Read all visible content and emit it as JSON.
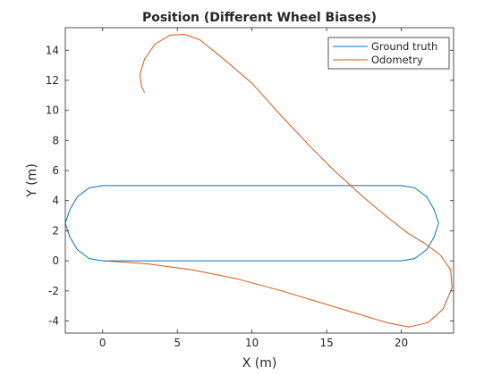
{
  "chart_data": {
    "type": "line",
    "title": "Position (Different Wheel Biases)",
    "xlabel": "X (m)",
    "ylabel": "Y (m)",
    "xlim": [
      -2.5,
      23.5
    ],
    "ylim": [
      -4.8,
      15.5
    ],
    "xticks": [
      0,
      5,
      10,
      15,
      20
    ],
    "xtick_labels": [
      "0",
      "5",
      "10",
      "15",
      "20"
    ],
    "yticks": [
      -4,
      -2,
      0,
      2,
      4,
      6,
      8,
      10,
      12,
      14
    ],
    "ytick_labels": [
      "-4",
      "-2",
      "0",
      "2",
      "4",
      "6",
      "8",
      "10",
      "12",
      "14"
    ],
    "grid": false,
    "legend_position": "top-right",
    "series": [
      {
        "name": "Ground truth",
        "color": "#0072bd",
        "x": [
          0,
          5,
          10,
          15,
          20,
          20.9,
          21.7,
          22.2,
          22.5,
          22.2,
          21.7,
          20.9,
          20,
          15,
          10,
          5,
          0,
          -0.9,
          -1.7,
          -2.2,
          -2.5,
          -2.2,
          -1.7,
          -0.9,
          0
        ],
        "y": [
          0,
          0,
          0,
          0,
          0,
          0.15,
          0.75,
          1.6,
          2.5,
          3.4,
          4.25,
          4.85,
          5,
          5,
          5,
          5,
          5,
          4.85,
          4.25,
          3.4,
          2.5,
          1.6,
          0.75,
          0.15,
          0
        ]
      },
      {
        "name": "Odometry",
        "color": "#d95319",
        "x": [
          0,
          3,
          6,
          9,
          12,
          15,
          17,
          19,
          20.5,
          21.8,
          22.8,
          23.4,
          23.3,
          22.6,
          21.5,
          20.5,
          19.2,
          17.5,
          15.5,
          14,
          12,
          10,
          8,
          6.5,
          5.5,
          4.5,
          3.5,
          2.8,
          2.5,
          2.6,
          2.8
        ],
        "y": [
          0,
          -0.2,
          -0.6,
          -1.2,
          -2.0,
          -2.9,
          -3.5,
          -4.1,
          -4.4,
          -4.1,
          -3.2,
          -1.8,
          -0.6,
          0.4,
          1.2,
          1.8,
          2.8,
          4.2,
          6.0,
          7.5,
          9.6,
          11.8,
          13.5,
          14.7,
          15.05,
          15.0,
          14.4,
          13.4,
          12.4,
          11.6,
          11.2
        ]
      }
    ]
  }
}
